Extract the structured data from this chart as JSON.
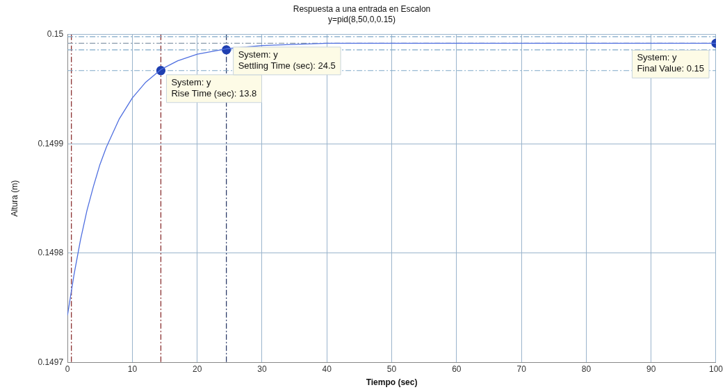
{
  "chart_data": {
    "type": "line",
    "title": "Respuesta a una entrada en Escalon",
    "subtitle": "y=pid(8,50,0,0.15)",
    "xlabel": "Tiempo (sec)",
    "ylabel": "Altura (m)",
    "xlim": [
      0,
      100
    ],
    "xticks": [
      0,
      10,
      20,
      30,
      40,
      50,
      60,
      70,
      80,
      90,
      100
    ],
    "ylim": [
      0.1497,
      0.15
    ],
    "yticks": [
      0.1497,
      0.1498,
      0.1499,
      0.15
    ],
    "grid": true,
    "legend": false,
    "series": [
      {
        "color": "#4f6fe0",
        "marker": "none",
        "x": [
          0,
          1,
          2,
          3,
          4,
          5,
          6,
          8,
          10,
          12,
          14.4,
          17,
          20,
          24.5,
          30,
          40,
          50,
          60,
          70,
          80,
          90,
          100
        ],
        "values": [
          0.149743,
          0.14978,
          0.149812,
          0.149839,
          0.149861,
          0.149881,
          0.149897,
          0.149923,
          0.149942,
          0.149956,
          0.149968,
          0.149976,
          0.149982,
          0.149987,
          0.14999,
          0.149992,
          0.149992,
          0.149992,
          0.149992,
          0.149992,
          0.149992,
          0.149992
        ]
      },
      {
        "type": "scatter",
        "color": "#1f3fb0",
        "marker": "circle",
        "x": [
          14.4,
          24.5,
          100
        ],
        "values": [
          0.149967,
          0.149986,
          0.149992
        ]
      }
    ],
    "ref_lines": [
      {
        "axis": "x",
        "value": 0.6,
        "color": "#802020",
        "line_style": "dashed"
      },
      {
        "axis": "x",
        "value": 14.4,
        "color": "#802020",
        "line_style": "dashed"
      },
      {
        "axis": "x",
        "value": 24.5,
        "color": "#203060",
        "line_style": "dashed"
      },
      {
        "axis": "y",
        "value": 0.149967,
        "color": "#7fa8c8",
        "line_style": "dashed"
      },
      {
        "axis": "y",
        "value": 0.149998,
        "color": "#7fa8c8",
        "line_style": "dashed"
      },
      {
        "axis": "y",
        "value": 0.149992,
        "color": "#8899aa",
        "line_style": "dashed"
      },
      {
        "axis": "y",
        "value": 0.149986,
        "color": "#7fa8c8",
        "line_style": "dashed"
      }
    ],
    "annotations": [
      {
        "text": "System: y\nRise Time (sec): 13.8",
        "x": 14.4,
        "y": 0.149967
      },
      {
        "text": "System: y\nSettling Time (sec): 24.5",
        "x": 24.5,
        "y": 0.149986
      },
      {
        "text": "System: y\nFinal Value: 0.15",
        "x": 100,
        "y": 0.149992
      }
    ]
  }
}
